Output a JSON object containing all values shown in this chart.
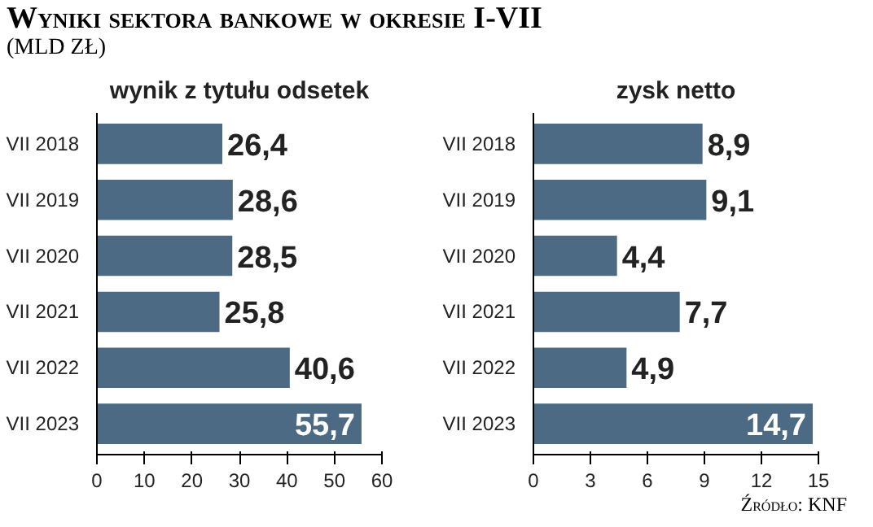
{
  "chart_data": [
    {
      "type": "bar",
      "orientation": "horizontal",
      "title": "Wyniki sektora bankowe w okresie I-VII",
      "subtitle": "(MLD ZŁ)",
      "xlabel": "wynik z tytułu odsetek",
      "categories": [
        "VII 2018",
        "VII 2019",
        "VII 2020",
        "VII 2021",
        "VII 2022",
        "VII 2023"
      ],
      "values": [
        26.4,
        28.6,
        28.5,
        25.8,
        40.6,
        55.7
      ],
      "value_labels": [
        "26,4",
        "28,6",
        "28,5",
        "25,8",
        "40,6",
        "55,7"
      ],
      "color": "#4d6a85",
      "xlim": [
        0,
        60
      ],
      "xticks": [
        0,
        10,
        20,
        30,
        40,
        50,
        60
      ],
      "grid": false
    },
    {
      "type": "bar",
      "orientation": "horizontal",
      "xlabel": "zysk netto",
      "categories": [
        "VII 2018",
        "VII 2019",
        "VII 2020",
        "VII 2021",
        "VII 2022",
        "VII 2023"
      ],
      "values": [
        8.9,
        9.1,
        4.4,
        7.7,
        4.9,
        14.7
      ],
      "value_labels": [
        "8,9",
        "9,1",
        "4,4",
        "7,7",
        "4,9",
        "14,7"
      ],
      "color": "#4d6a85",
      "xlim": [
        0,
        15
      ],
      "xticks": [
        0,
        3,
        6,
        9,
        12,
        15
      ],
      "grid": false,
      "annotations": [
        "Źródło: KNF"
      ]
    }
  ]
}
